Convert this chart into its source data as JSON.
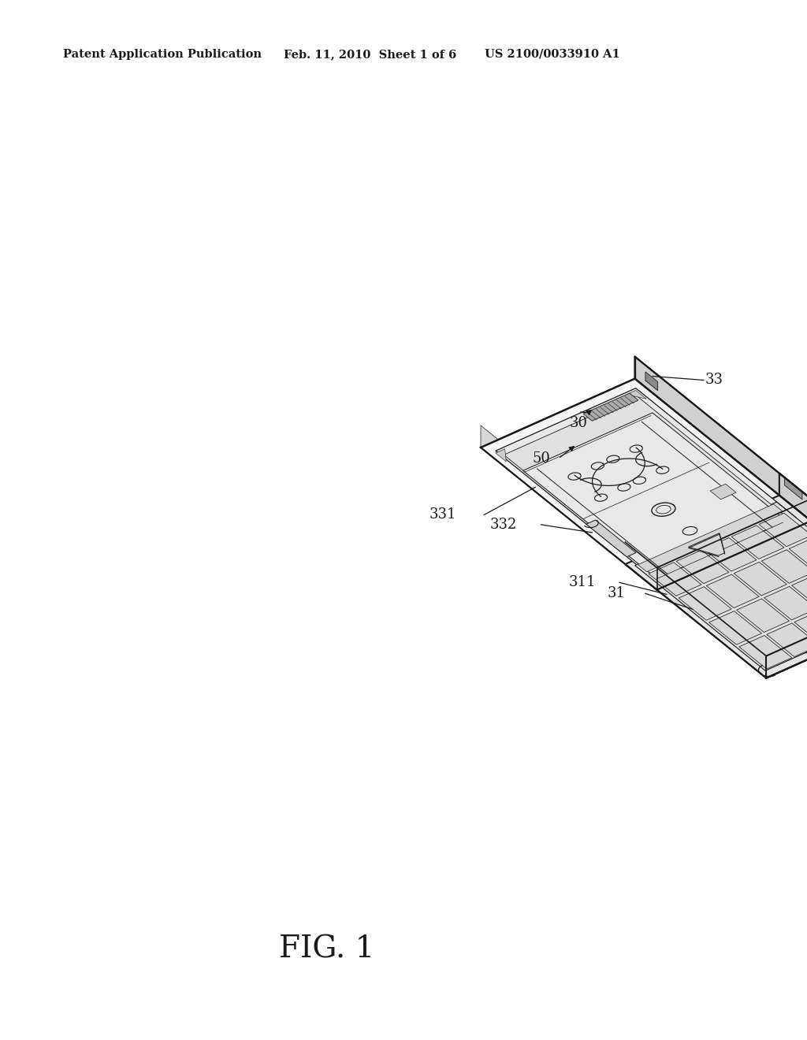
{
  "bg_color": "#ffffff",
  "header_left": "Patent Application Publication",
  "header_mid": "Feb. 11, 2010  Sheet 1 of 6",
  "header_right": "US 2100/0033910 A1",
  "fig_label": "FIG. 1",
  "line_color": "#1a1a1a",
  "text_color": "#1a1a1a",
  "lw_main": 1.5,
  "lw_detail": 0.9,
  "lw_thin": 0.6,
  "header_fontsize": 10.5,
  "ref_fontsize": 13,
  "fig_label_fontsize": 28,
  "face_top_light": "#f5f5f5",
  "face_top_mid": "#eeeeee",
  "face_right": "#d0d0d0",
  "face_front": "#c0c0c0",
  "face_inner": "#e8e8e8",
  "face_key_bg": "#e5e5e5",
  "face_key_btn": "#d8d8d8",
  "face_speaker": "#aaaaaa"
}
